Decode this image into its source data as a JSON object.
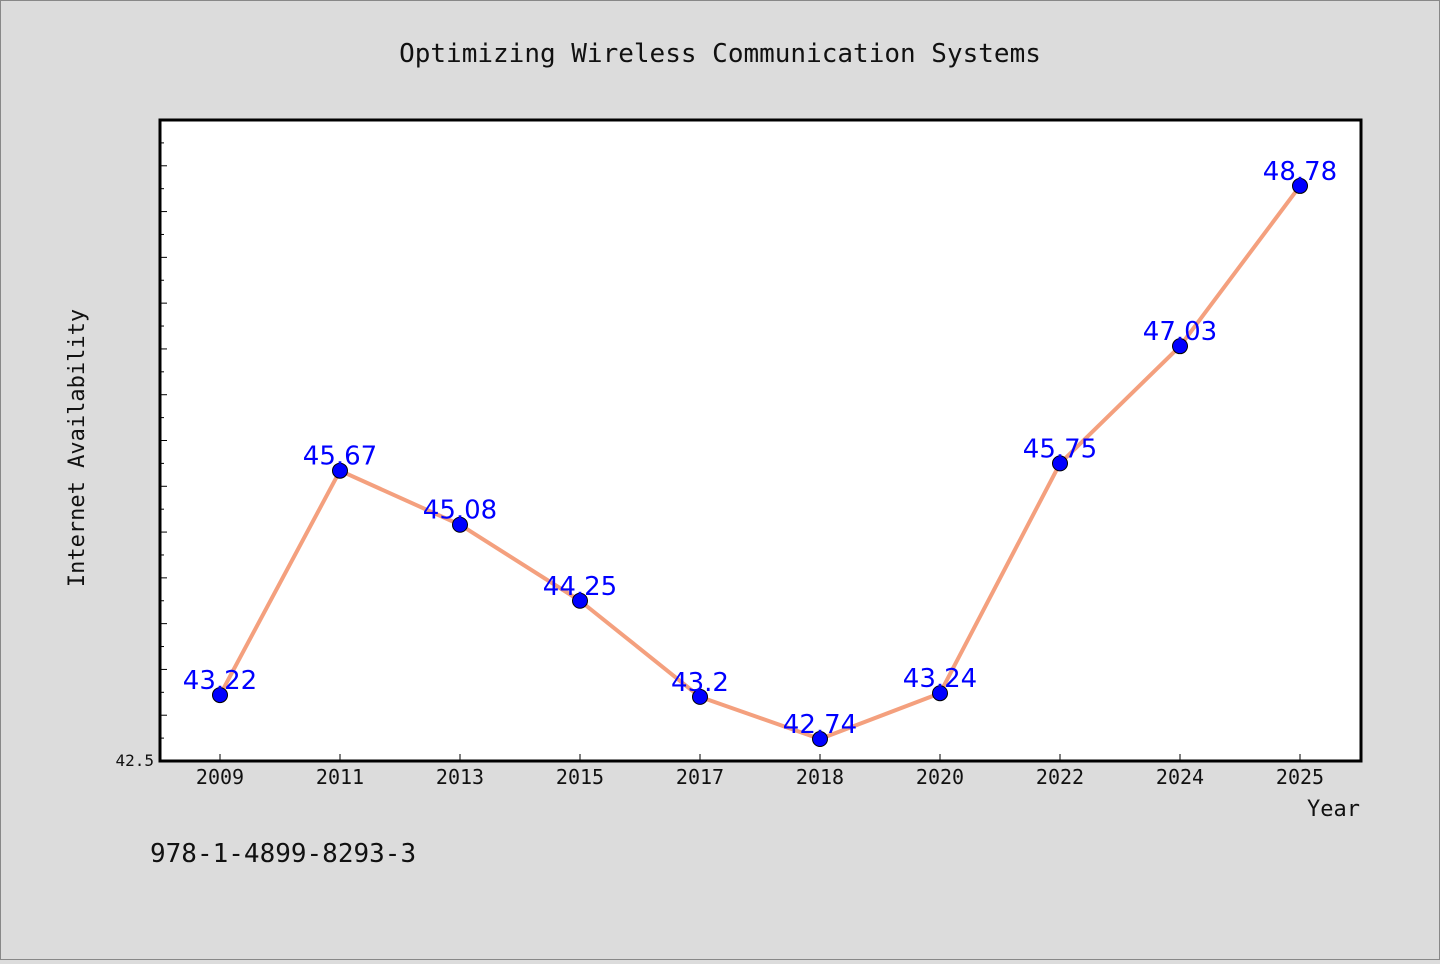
{
  "chart_data": {
    "type": "line",
    "title": "Optimizing Wireless Communication Systems",
    "xlabel": "Year",
    "ylabel": "Internet Availability",
    "categories": [
      "2009",
      "2011",
      "2013",
      "2015",
      "2017",
      "2018",
      "2020",
      "2022",
      "2024",
      "2025"
    ],
    "series": [
      {
        "values": [
          43.22,
          45.67,
          45.08,
          44.25,
          43.2,
          42.74,
          43.24,
          45.75,
          47.03,
          48.78
        ]
      }
    ],
    "ylim": [
      42.5,
      49.5
    ],
    "y_tick_labels": [
      "42.5"
    ],
    "grid": false,
    "colors": {
      "line": "#f4a07e",
      "marker": "#0000ff",
      "label": "#0000ff",
      "background": "#dcdcdc",
      "plot_background": "#ffffff"
    }
  },
  "footer": {
    "isbn": "978-1-4899-8293-3"
  }
}
